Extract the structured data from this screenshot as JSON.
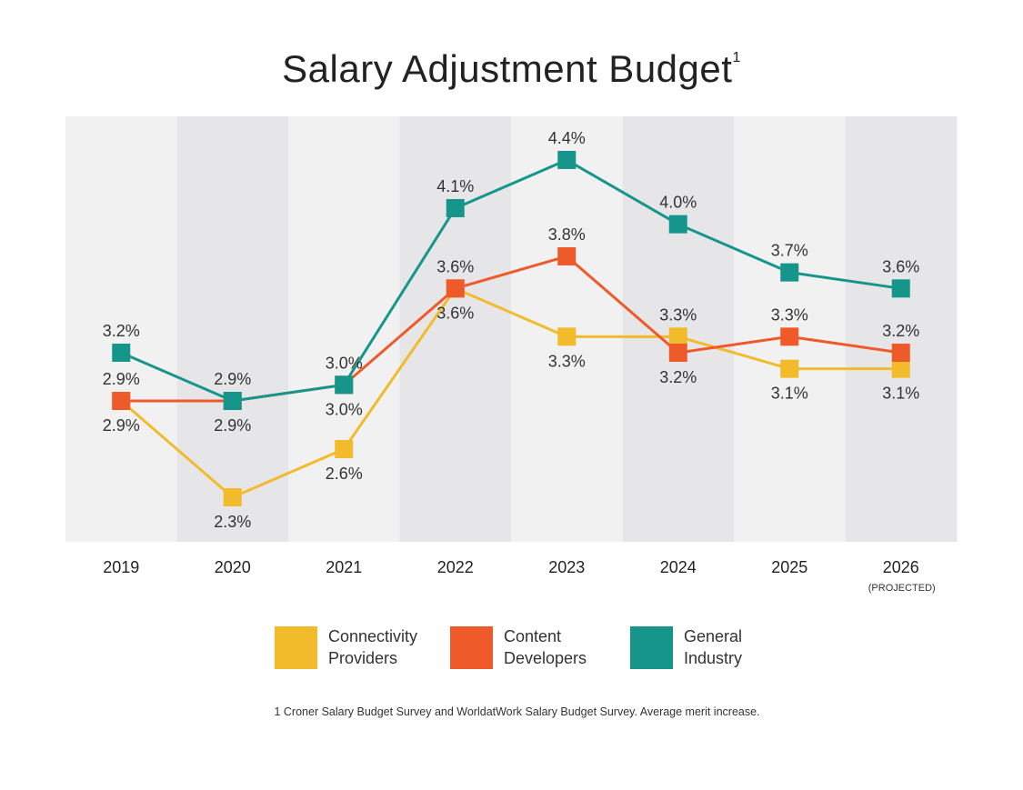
{
  "title": "Salary Adjustment Budget",
  "title_footnote_marker": "1",
  "footnote": "1 Croner Salary Budget Survey and WorldatWork Salary Budget Survey. Average merit increase.",
  "chart_data": {
    "type": "line",
    "title": "Salary Adjustment Budget",
    "categories": [
      "2019",
      "2020",
      "2021",
      "2022",
      "2023",
      "2024",
      "2025",
      "2026"
    ],
    "category_sublabels": {
      "2026": "(PROJECTED)"
    },
    "value_format": "percent",
    "series": [
      {
        "name": "Connectivity Providers",
        "color": "#F2BB2B",
        "values": [
          2.9,
          2.3,
          2.6,
          3.6,
          3.3,
          3.3,
          3.1,
          3.1
        ]
      },
      {
        "name": "Content Developers",
        "color": "#EE5A2A",
        "values": [
          2.9,
          2.9,
          3.0,
          3.6,
          3.8,
          3.2,
          3.3,
          3.2
        ]
      },
      {
        "name": "General Industry",
        "color": "#16968A",
        "values": [
          3.2,
          2.9,
          3.0,
          4.1,
          4.4,
          4.0,
          3.7,
          3.6
        ]
      }
    ],
    "grid": false,
    "legend_placement": "bottom",
    "band_colors": [
      "#F1F1F1",
      "#E6E6E8"
    ]
  },
  "legend": [
    {
      "line1": "Connectivity",
      "line2": "Providers",
      "color": "#F2BB2B"
    },
    {
      "line1": "Content",
      "line2": "Developers",
      "color": "#EE5A2A"
    },
    {
      "line1": "General",
      "line2": "Industry",
      "color": "#16968A"
    }
  ]
}
